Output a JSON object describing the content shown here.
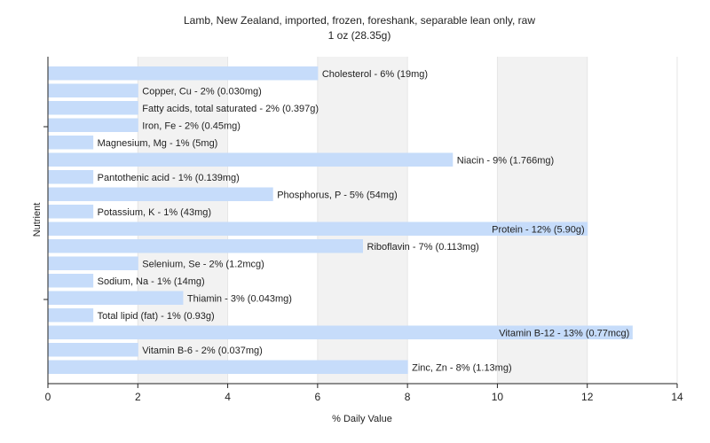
{
  "chart_data": {
    "type": "bar",
    "orientation": "horizontal",
    "title": "Lamb, New Zealand, imported, frozen, foreshank, separable lean only, raw",
    "subtitle": "1 oz (28.35g)",
    "xlabel": "% Daily Value",
    "ylabel": "Nutrient",
    "xlim": [
      0,
      14
    ],
    "xticks": [
      0,
      2,
      4,
      6,
      8,
      10,
      12,
      14
    ],
    "grid": true,
    "bar_color": "#c6dcfa",
    "background_stripe_color": "#f2f2f2",
    "axis_color": "#222222",
    "categories": [
      "Cholesterol",
      "Copper, Cu",
      "Fatty acids, total saturated",
      "Iron, Fe",
      "Magnesium, Mg",
      "Niacin",
      "Pantothenic acid",
      "Phosphorus, P",
      "Potassium, K",
      "Protein",
      "Riboflavin",
      "Selenium, Se",
      "Sodium, Na",
      "Thiamin",
      "Total lipid (fat)",
      "Vitamin B-12",
      "Vitamin B-6",
      "Zinc, Zn"
    ],
    "values": [
      6,
      2,
      2,
      2,
      1,
      9,
      1,
      5,
      1,
      12,
      7,
      2,
      1,
      3,
      1,
      13,
      2,
      8
    ],
    "labels": [
      "Cholesterol - 6% (19mg)",
      "Copper, Cu - 2% (0.030mg)",
      "Fatty acids, total saturated - 2% (0.397g)",
      "Iron, Fe - 2% (0.45mg)",
      "Magnesium, Mg - 1% (5mg)",
      "Niacin - 9% (1.766mg)",
      "Pantothenic acid - 1% (0.139mg)",
      "Phosphorus, P - 5% (54mg)",
      "Potassium, K - 1% (43mg)",
      "Protein - 12% (5.90g)",
      "Riboflavin - 7% (0.113mg)",
      "Selenium, Se - 2% (1.2mcg)",
      "Sodium, Na - 1% (14mg)",
      "Thiamin - 3% (0.043mg)",
      "Total lipid (fat) - 1% (0.93g)",
      "Vitamin B-12 - 13% (0.77mcg)",
      "Vitamin B-6 - 2% (0.037mg)",
      "Zinc, Zn - 8% (1.13mg)"
    ]
  }
}
